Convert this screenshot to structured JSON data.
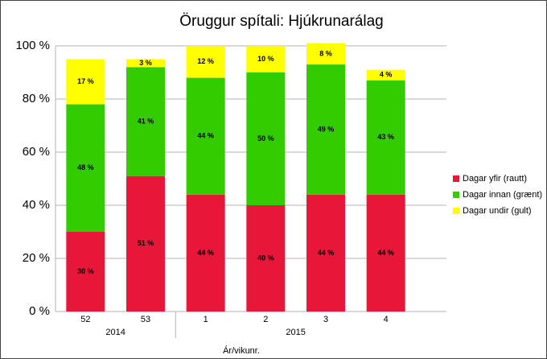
{
  "chart_data": {
    "type": "stacked_bar",
    "title": "Öruggur spítali: Hjúkrunarálag",
    "xlabel": "Ár/vikunr.",
    "categories": [
      "52",
      "53",
      "1",
      "2",
      "3",
      "4"
    ],
    "x_groups": [
      {
        "label": "2014",
        "span": 2
      },
      {
        "label": "2015",
        "span": 4
      }
    ],
    "series": [
      {
        "name": "Dagar yfir (rautt)",
        "color": "#e8173a",
        "values": [
          30,
          51,
          44,
          40,
          44,
          44
        ],
        "value_labels": [
          "30 %",
          "51 %",
          "44 %",
          "40 %",
          "44 %",
          "44 %"
        ]
      },
      {
        "name": "Dagar innan (grænt)",
        "color": "#33cc00",
        "values": [
          48,
          41,
          44,
          50,
          49,
          43
        ],
        "value_labels": [
          "48 %",
          "41 %",
          "44 %",
          "50 %",
          "49 %",
          "43 %"
        ]
      },
      {
        "name": "Dagar undir (gult)",
        "color": "#ffff00",
        "values": [
          17,
          3,
          12,
          10,
          8,
          4
        ],
        "value_labels": [
          "17 %",
          "3 %",
          "12 %",
          "10 %",
          "8 %",
          "4 %"
        ]
      }
    ],
    "ylim": [
      0,
      100
    ],
    "yticks": [
      {
        "value": 0,
        "label": "0 %"
      },
      {
        "value": 20,
        "label": "20 %"
      },
      {
        "value": 40,
        "label": "40 %"
      },
      {
        "value": 60,
        "label": "60 %"
      },
      {
        "value": 80,
        "label": "80 %"
      },
      {
        "value": 100,
        "label": "100 %"
      }
    ],
    "grid": true,
    "legend": "right"
  }
}
